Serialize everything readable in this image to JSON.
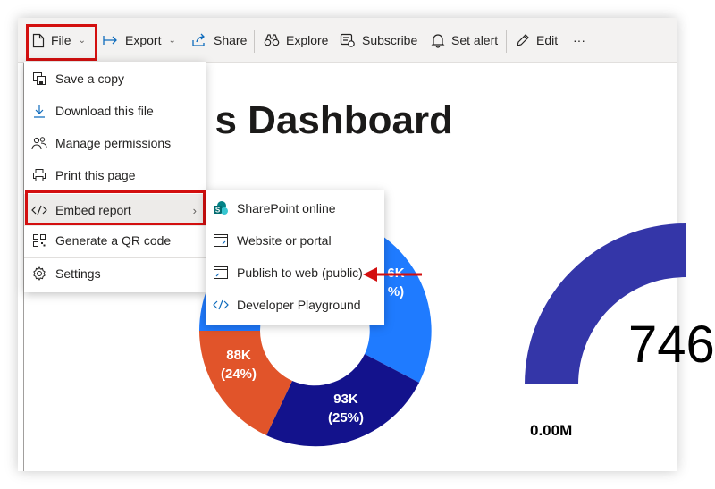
{
  "toolbar": {
    "file_label": "File",
    "export_label": "Export",
    "share_label": "Share",
    "explore_label": "Explore",
    "subscribe_label": "Subscribe",
    "set_alert_label": "Set alert",
    "edit_label": "Edit",
    "more_label": "···"
  },
  "report": {
    "title": "s Dashboard",
    "donut_labels": [
      {
        "value": "6K",
        "pct": "%)"
      },
      {
        "value": "88K",
        "pct": "(24%)"
      },
      {
        "value": "93K",
        "pct": "(25%)"
      }
    ],
    "gauge_value": "746",
    "gauge_min": "0.00M",
    "colors": {
      "blue": "#1f7bff",
      "navy": "#13128c",
      "orange": "#e1542a",
      "gauge": "#3436a8"
    }
  },
  "file_menu": {
    "items": [
      {
        "label": "Save a copy",
        "icon": "save-copy-icon"
      },
      {
        "label": "Download this file",
        "icon": "download-icon"
      },
      {
        "label": "Manage permissions",
        "icon": "people-icon"
      },
      {
        "label": "Print this page",
        "icon": "print-icon"
      },
      {
        "label": "Embed report",
        "icon": "code-icon"
      },
      {
        "label": "Generate a QR code",
        "icon": "qr-code-icon"
      },
      {
        "label": "Settings",
        "icon": "gear-icon"
      }
    ],
    "submenu_arrow": "›"
  },
  "embed_submenu": {
    "items": [
      {
        "label": "SharePoint online",
        "icon": "sharepoint-icon"
      },
      {
        "label": "Website or portal",
        "icon": "website-icon"
      },
      {
        "label": "Publish to web (public)",
        "icon": "publish-web-icon"
      },
      {
        "label": "Developer Playground",
        "icon": "developer-icon"
      }
    ]
  },
  "annotation_color": "#d30f0f"
}
